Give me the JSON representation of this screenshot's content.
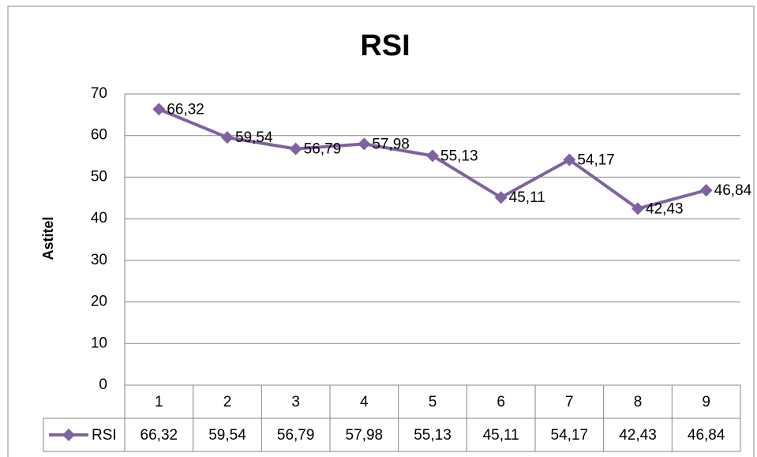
{
  "chart_data": {
    "type": "line",
    "title": "RSI",
    "y_label": "Astitel",
    "categories": [
      "1",
      "2",
      "3",
      "4",
      "5",
      "6",
      "7",
      "8",
      "9"
    ],
    "series": [
      {
        "name": "RSI",
        "color": "#7f63a1",
        "values": [
          66.32,
          59.54,
          56.79,
          57.98,
          55.13,
          45.11,
          54.17,
          42.43,
          46.84
        ],
        "value_labels": [
          "66,32",
          "59,54",
          "56,79",
          "57,98",
          "55,13",
          "45,11",
          "54,17",
          "42,43",
          "46,84"
        ]
      }
    ],
    "ylim": [
      0,
      70
    ],
    "yticks": [
      0,
      10,
      20,
      30,
      40,
      50,
      60,
      70
    ],
    "grid": true
  }
}
